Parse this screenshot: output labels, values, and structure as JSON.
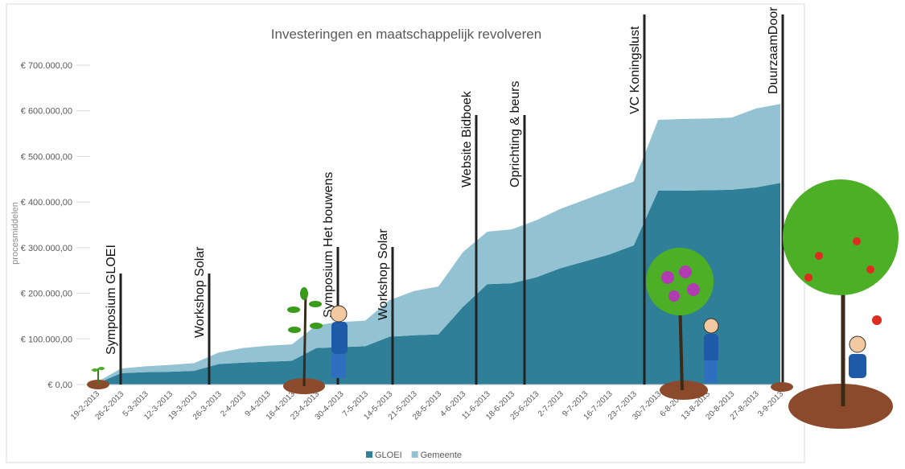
{
  "chart_data": {
    "type": "stacked_area",
    "title": "Investeringen en maatschappelijk revolveren",
    "y_label": "procesmiddelen",
    "categories": [
      "19-2-2013",
      "26-2-2013",
      "5-3-2013",
      "12-3-2013",
      "19-3-2013",
      "26-3-2013",
      "2-4-2013",
      "9-4-2013",
      "16-4-2013",
      "23-4-2013",
      "30-4-2013",
      "7-5-2013",
      "14-5-2013",
      "21-5-2013",
      "28-5-2013",
      "4-6-2013",
      "11-6-2013",
      "18-6-2013",
      "25-6-2013",
      "2-7-2013",
      "9-7-2013",
      "16-7-2013",
      "23-7-2013",
      "30-7-2013",
      "6-8-2013",
      "13-8-2013",
      "20-8-2013",
      "27-8-2013",
      "3-9-2013"
    ],
    "series": [
      {
        "name": "GLOEI",
        "color": "#2f7f98",
        "values": [
          2000,
          25000,
          27000,
          28000,
          30000,
          45000,
          48000,
          50000,
          52000,
          80000,
          82000,
          84000,
          105000,
          108000,
          110000,
          170000,
          220000,
          222000,
          235000,
          255000,
          270000,
          285000,
          305000,
          425000,
          425000,
          426000,
          427000,
          432000,
          442000
        ]
      },
      {
        "name": "Gemeente",
        "color": "#93c3d2",
        "values": [
          3000,
          10000,
          13000,
          15000,
          17000,
          25000,
          32000,
          35000,
          36000,
          50000,
          55000,
          56000,
          80000,
          97000,
          105000,
          120000,
          115000,
          118000,
          125000,
          130000,
          135000,
          140000,
          140000,
          155000,
          157000,
          157000,
          158000,
          173000,
          173000
        ]
      }
    ],
    "ylim": [
      0,
      700000
    ],
    "yticks": [
      {
        "value": 0,
        "label": "€ 0,00"
      },
      {
        "value": 100000,
        "label": "€ 100.000,00"
      },
      {
        "value": 200000,
        "label": "€ 200.000,00"
      },
      {
        "value": 300000,
        "label": "€ 300.000,00"
      },
      {
        "value": 400000,
        "label": "€ 400.000,00"
      },
      {
        "value": 500000,
        "label": "€ 500.000,00"
      },
      {
        "value": 600000,
        "label": "€ 600.000,00"
      },
      {
        "value": 700000,
        "label": "€ 700.000,00"
      }
    ],
    "grid": true,
    "legend": "bottom",
    "annotations": [
      "Symposium GLOEI",
      "Workshop Solar",
      "Symposium Het bouwens",
      "Workshop Solar",
      "Website Bidboek",
      "Oprichting & beurs",
      "VC Koningslust",
      "DuurzaamDoor"
    ]
  }
}
